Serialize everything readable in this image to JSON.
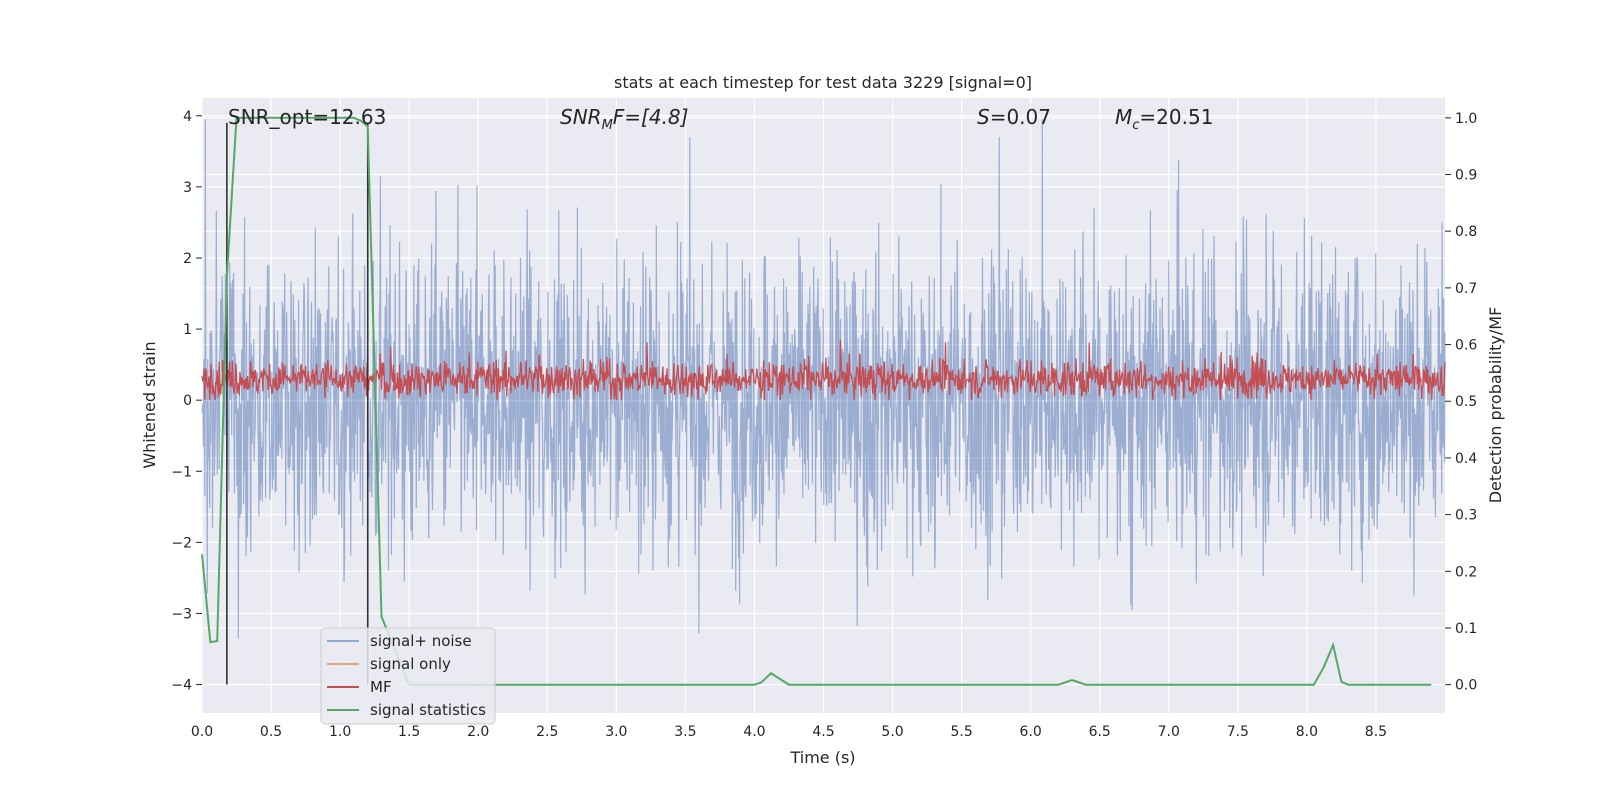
{
  "chart_data": {
    "type": "line",
    "title": "stats at each timestep for test data 3229 [signal=0]",
    "xlabel": "Time (s)",
    "ylabel_left": "Whitened strain",
    "ylabel_right": "Detection probability/MF",
    "xlim": [
      0,
      9.0
    ],
    "ylim_left": [
      -4.4,
      4.25
    ],
    "ylim_right": [
      -0.05,
      1.035
    ],
    "x_ticks": [
      "0.0",
      "0.5",
      "1.0",
      "1.5",
      "2.0",
      "2.5",
      "3.0",
      "3.5",
      "4.0",
      "4.5",
      "5.0",
      "5.5",
      "6.0",
      "6.5",
      "7.0",
      "7.5",
      "8.0",
      "8.5"
    ],
    "y_left_ticks": [
      "4",
      "3",
      "2",
      "1",
      "0",
      "−1",
      "−2",
      "−3",
      "−4"
    ],
    "y_right_ticks": [
      "1.0",
      "0.9",
      "0.8",
      "0.7",
      "0.6",
      "0.5",
      "0.4",
      "0.3",
      "0.2",
      "0.1",
      "0.0"
    ],
    "grid": true,
    "legend_position": "lower-left",
    "annotations": {
      "snr_opt": "SNR_opt=12.63",
      "snr_mf_base": "SNR",
      "snr_mf_sub": "M",
      "snr_mf_rest": "F=[4.8]",
      "s_var": "S",
      "s_val": "=0.07",
      "mc_var": "M",
      "mc_sub": "c",
      "mc_val": "=20.51"
    },
    "vertical_markers": [
      0.18,
      1.2
    ],
    "series": [
      {
        "name": "signal+ noise",
        "color": "#4c72b0",
        "axis": "left",
        "note": "whitened strain noise, spread roughly -2.8 to 3.9"
      },
      {
        "name": "signal only",
        "color": "#dd8452",
        "axis": "left"
      },
      {
        "name": "MF",
        "color": "#c44e52",
        "axis": "left",
        "note": "matched filter output, roughly 0.0 to 0.9"
      },
      {
        "name": "signal statistics",
        "color": "#55a868",
        "axis": "right",
        "x": [
          0.0,
          0.06,
          0.11,
          0.18,
          0.25,
          1.1,
          1.15,
          1.2,
          1.3,
          1.5,
          4.0,
          4.05,
          4.12,
          4.25,
          6.2,
          6.3,
          6.4,
          8.05,
          8.12,
          8.19,
          8.25,
          8.3,
          8.9
        ],
        "values": [
          0.23,
          0.075,
          0.077,
          0.72,
          1.0,
          1.0,
          0.995,
          0.985,
          0.12,
          0.0,
          0.0,
          0.004,
          0.02,
          0.0,
          0.0,
          0.008,
          0.0,
          0.0,
          0.03,
          0.07,
          0.005,
          0.0,
          0.0
        ]
      }
    ]
  },
  "colors": {
    "plot_bg": "#eaeaf2",
    "grid": "#ffffff",
    "signal_noise": "#4c72b0",
    "signal_only": "#dd8452",
    "mf": "#c44e52",
    "signal_statistics": "#55a868",
    "marker_line": "#333333"
  }
}
